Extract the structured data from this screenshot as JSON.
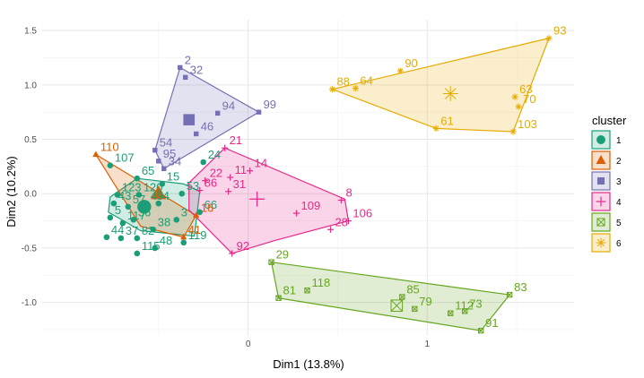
{
  "chart_data": {
    "type": "scatter",
    "xlabel": "Dim1 (13.8%)",
    "ylabel": "Dim2 (10.2%)",
    "xlim": [
      -1.15,
      1.82
    ],
    "ylim": [
      -1.3,
      1.6
    ],
    "x_ticks": [
      0,
      1
    ],
    "x_tick_labels": [
      "0",
      "1"
    ],
    "y_ticks": [
      -1.0,
      -0.5,
      0.0,
      0.5,
      1.0,
      1.5
    ],
    "y_tick_labels": [
      "-1.0",
      "-0.5",
      "0.0",
      "0.5",
      "1.0",
      "1.5"
    ],
    "grid": true,
    "legend": {
      "title": "cluster",
      "position": "right",
      "items": [
        "1",
        "2",
        "3",
        "4",
        "5",
        "6"
      ]
    },
    "series": [
      {
        "name": "1",
        "color": "#1B9E77",
        "shape": "circle",
        "hull": [
          [
            -0.77,
            -0.03
          ],
          [
            -0.62,
            0.14
          ],
          [
            -0.36,
            0.09
          ],
          [
            -0.27,
            0.02
          ],
          [
            -0.3,
            -0.39
          ],
          [
            -0.6,
            -0.34
          ],
          [
            -0.78,
            -0.17
          ]
        ],
        "center": [
          -0.58,
          -0.12
        ],
        "points": [
          {
            "label": "107",
            "x": -0.77,
            "y": 0.26
          },
          {
            "label": "65",
            "x": -0.62,
            "y": 0.14
          },
          {
            "label": "123",
            "x": -0.73,
            "y": -0.01
          },
          {
            "label": "43",
            "x": -0.75,
            "y": -0.09
          },
          {
            "label": "57",
            "x": -0.67,
            "y": -0.12
          },
          {
            "label": "120",
            "x": -0.61,
            "y": -0.01
          },
          {
            "label": "15",
            "x": -0.48,
            "y": 0.09
          },
          {
            "label": "53",
            "x": -0.37,
            "y": 0.0
          },
          {
            "label": "4",
            "x": -0.5,
            "y": -0.09
          },
          {
            "label": "49",
            "x": -0.57,
            "y": -0.09
          },
          {
            "label": "3",
            "x": -0.4,
            "y": -0.24
          },
          {
            "label": "5",
            "x": -0.77,
            "y": -0.22
          },
          {
            "label": "117",
            "x": -0.7,
            "y": -0.27
          },
          {
            "label": "36",
            "x": -0.64,
            "y": -0.24
          },
          {
            "label": "44",
            "x": -0.79,
            "y": -0.4
          },
          {
            "label": "37",
            "x": -0.71,
            "y": -0.41
          },
          {
            "label": "82",
            "x": -0.62,
            "y": -0.41
          },
          {
            "label": "115",
            "x": -0.62,
            "y": -0.55
          },
          {
            "label": "38",
            "x": -0.53,
            "y": -0.33
          },
          {
            "label": "48",
            "x": -0.52,
            "y": -0.5
          },
          {
            "label": "119",
            "x": -0.36,
            "y": -0.45
          },
          {
            "label": "66",
            "x": -0.27,
            "y": -0.17
          },
          {
            "label": "24",
            "x": -0.25,
            "y": 0.29
          }
        ]
      },
      {
        "name": "2",
        "color": "#D95F02",
        "shape": "triangle",
        "hull": [
          [
            -0.85,
            0.36
          ],
          [
            -0.29,
            -0.2
          ],
          [
            -0.36,
            -0.4
          ],
          [
            -0.6,
            -0.3
          ]
        ],
        "center": [
          -0.5,
          0.0
        ],
        "points": [
          {
            "label": "110",
            "x": -0.85,
            "y": 0.36
          },
          {
            "label": "16",
            "x": -0.29,
            "y": -0.2
          },
          {
            "label": "41",
            "x": -0.36,
            "y": -0.4
          }
        ]
      },
      {
        "name": "3",
        "color": "#7570B3",
        "shape": "square",
        "hull": [
          [
            -0.38,
            1.16
          ],
          [
            0.06,
            0.75
          ],
          [
            -0.47,
            0.23
          ],
          [
            -0.52,
            0.4
          ]
        ],
        "center": [
          -0.33,
          0.68
        ],
        "points": [
          {
            "label": "2",
            "x": -0.38,
            "y": 1.16
          },
          {
            "label": "32",
            "x": -0.35,
            "y": 1.07
          },
          {
            "label": "99",
            "x": 0.06,
            "y": 0.75
          },
          {
            "label": "94",
            "x": -0.17,
            "y": 0.74
          },
          {
            "label": "46",
            "x": -0.29,
            "y": 0.55
          },
          {
            "label": "54",
            "x": -0.52,
            "y": 0.4
          },
          {
            "label": "95",
            "x": -0.5,
            "y": 0.3
          },
          {
            "label": "34",
            "x": -0.47,
            "y": 0.23
          }
        ]
      },
      {
        "name": "4",
        "color": "#E7298A",
        "shape": "plus",
        "hull": [
          [
            -0.13,
            0.42
          ],
          [
            0.54,
            -0.05
          ],
          [
            0.56,
            -0.25
          ],
          [
            0.15,
            -0.43
          ],
          [
            -0.09,
            -0.55
          ],
          [
            -0.33,
            -0.15
          ],
          [
            -0.33,
            0.1
          ]
        ],
        "center": [
          0.05,
          -0.05
        ],
        "points": [
          {
            "label": "21",
            "x": -0.13,
            "y": 0.42
          },
          {
            "label": "14",
            "x": 0.01,
            "y": 0.21
          },
          {
            "label": "11",
            "x": -0.1,
            "y": 0.15
          },
          {
            "label": "22",
            "x": -0.24,
            "y": 0.12
          },
          {
            "label": "86",
            "x": -0.27,
            "y": 0.03
          },
          {
            "label": "31",
            "x": -0.11,
            "y": 0.02
          },
          {
            "label": "109",
            "x": 0.27,
            "y": -0.18
          },
          {
            "label": "8",
            "x": 0.52,
            "y": -0.06
          },
          {
            "label": "106",
            "x": 0.56,
            "y": -0.25
          },
          {
            "label": "28",
            "x": 0.46,
            "y": -0.33
          },
          {
            "label": "92",
            "x": -0.09,
            "y": -0.55
          }
        ]
      },
      {
        "name": "5",
        "color": "#66A61E",
        "shape": "square-x",
        "hull": [
          [
            0.13,
            -0.63
          ],
          [
            1.46,
            -0.93
          ],
          [
            1.3,
            -1.26
          ],
          [
            0.17,
            -0.96
          ]
        ],
        "center": [
          0.83,
          -1.03
        ],
        "points": [
          {
            "label": "29",
            "x": 0.13,
            "y": -0.63
          },
          {
            "label": "81",
            "x": 0.17,
            "y": -0.96
          },
          {
            "label": "118",
            "x": 0.33,
            "y": -0.89
          },
          {
            "label": "85",
            "x": 0.86,
            "y": -0.95
          },
          {
            "label": "79",
            "x": 0.93,
            "y": -1.06
          },
          {
            "label": "112",
            "x": 1.13,
            "y": -1.1
          },
          {
            "label": "73",
            "x": 1.21,
            "y": -1.08
          },
          {
            "label": "83",
            "x": 1.46,
            "y": -0.93
          },
          {
            "label": "91",
            "x": 1.3,
            "y": -1.26
          }
        ]
      },
      {
        "name": "6",
        "color": "#E6AB02",
        "shape": "star",
        "hull": [
          [
            0.47,
            0.96
          ],
          [
            1.68,
            1.43
          ],
          [
            1.48,
            0.57
          ],
          [
            1.05,
            0.6
          ]
        ],
        "center": [
          1.13,
          0.92
        ],
        "points": [
          {
            "label": "88",
            "x": 0.47,
            "y": 0.96
          },
          {
            "label": "64",
            "x": 0.6,
            "y": 0.97
          },
          {
            "label": "90",
            "x": 0.85,
            "y": 1.13
          },
          {
            "label": "93",
            "x": 1.68,
            "y": 1.43
          },
          {
            "label": "63",
            "x": 1.49,
            "y": 0.89
          },
          {
            "label": "70",
            "x": 1.51,
            "y": 0.8
          },
          {
            "label": "61",
            "x": 1.05,
            "y": 0.6
          },
          {
            "label": "103",
            "x": 1.48,
            "y": 0.57
          }
        ]
      }
    ]
  }
}
